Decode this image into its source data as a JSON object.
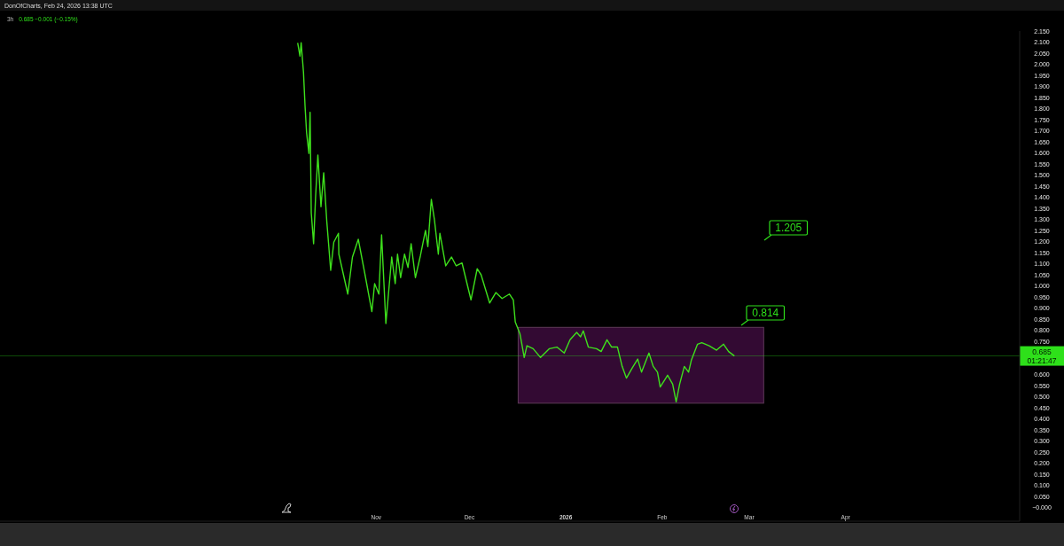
{
  "chart_data": {
    "type": "line",
    "title": "3h",
    "subtitle": "0.685 −0.001 (−0.15%)",
    "annotations": [
      "DonOfCharts, Feb 24, 2026 13:38 UTC",
      "1.205",
      "0.814"
    ],
    "xlim": [
      "2025-07-03",
      "2026-05-27"
    ],
    "xticks": [
      {
        "value": "2025-11-01",
        "label": "Nov"
      },
      {
        "value": "2025-12-01",
        "label": "Dec"
      },
      {
        "value": "2026-01-01",
        "label": "2026"
      },
      {
        "value": "2026-02-01",
        "label": "Feb"
      },
      {
        "value": "2026-03-01",
        "label": "Mar"
      },
      {
        "value": "2026-04-01",
        "label": "Apr"
      }
    ],
    "ylim": [
      -0.06,
      2.15
    ],
    "yticks": [
      {
        "value": 0,
        "label": "−0.000"
      },
      {
        "value": 0.05,
        "label": "0.050"
      },
      {
        "value": 0.1,
        "label": "0.100"
      },
      {
        "value": 0.15,
        "label": "0.150"
      },
      {
        "value": 0.2,
        "label": "0.200"
      },
      {
        "value": 0.25,
        "label": "0.250"
      },
      {
        "value": 0.3,
        "label": "0.300"
      },
      {
        "value": 0.35,
        "label": "0.350"
      },
      {
        "value": 0.4,
        "label": "0.400"
      },
      {
        "value": 0.45,
        "label": "0.450"
      },
      {
        "value": 0.5,
        "label": "0.500"
      },
      {
        "value": 0.55,
        "label": "0.550"
      },
      {
        "value": 0.6,
        "label": "0.600"
      },
      {
        "value": 0.75,
        "label": "0.750"
      },
      {
        "value": 0.8,
        "label": "0.800"
      },
      {
        "value": 0.85,
        "label": "0.850"
      },
      {
        "value": 0.9,
        "label": "0.900"
      },
      {
        "value": 0.95,
        "label": "0.950"
      },
      {
        "value": 1,
        "label": "1.000"
      },
      {
        "value": 1.05,
        "label": "1.050"
      },
      {
        "value": 1.1,
        "label": "1.100"
      },
      {
        "value": 1.15,
        "label": "1.150"
      },
      {
        "value": 1.2,
        "label": "1.200"
      },
      {
        "value": 1.25,
        "label": "1.250"
      },
      {
        "value": 1.3,
        "label": "1.300"
      },
      {
        "value": 1.35,
        "label": "1.350"
      },
      {
        "value": 1.4,
        "label": "1.400"
      },
      {
        "value": 1.45,
        "label": "1.450"
      },
      {
        "value": 1.5,
        "label": "1.500"
      },
      {
        "value": 1.55,
        "label": "1.550"
      },
      {
        "value": 1.6,
        "label": "1.600"
      },
      {
        "value": 1.65,
        "label": "1.650"
      },
      {
        "value": 1.7,
        "label": "1.700"
      },
      {
        "value": 1.75,
        "label": "1.750"
      },
      {
        "value": 1.8,
        "label": "1.800"
      },
      {
        "value": 1.85,
        "label": "1.850"
      },
      {
        "value": 1.9,
        "label": "1.900"
      },
      {
        "value": 1.95,
        "label": "1.950"
      },
      {
        "value": 2,
        "label": "2.000"
      },
      {
        "value": 2.05,
        "label": "2.050"
      },
      {
        "value": 2.1,
        "label": "2.100"
      },
      {
        "value": 2.15,
        "label": "2.150"
      }
    ],
    "ref_lines": [
      {
        "axis": "y",
        "value": 0.685,
        "label": "0.685 01:21:47",
        "color": "#2ee01a"
      }
    ],
    "bands": [
      {
        "axis": "y",
        "from": 0.472,
        "to": 0.814,
        "color": "#330a33"
      }
    ],
    "series": [
      {
        "color": "#3ee01c",
        "x": [
          "2025-10-06T18:00",
          "2025-10-07T12:00",
          "2025-10-07T21:00",
          "2025-10-08T15:00",
          "2025-10-09T03:00",
          "2025-10-09T15:00",
          "2025-10-10T09:00",
          "2025-10-10T18:00",
          "2025-10-11T03:00",
          "2025-10-11T21:00",
          "2025-10-12T12:00",
          "2025-10-13T06:00",
          "2025-10-14T06:00",
          "2025-10-15T03:00",
          "2025-10-16T03:00",
          "2025-10-17T09:00",
          "2025-10-18T09:00",
          "2025-10-19T21:00",
          "2025-10-20T00:00",
          "2025-10-22T21:00",
          "2025-10-24T09:00",
          "2025-10-26T06:00",
          "2025-10-28T06:00",
          "2025-10-30T15:00",
          "2025-10-31T12:00",
          "2025-11-01T21:00",
          "2025-11-02T18:00",
          "2025-11-04T03:00",
          "2025-11-06T00:00",
          "2025-11-07T03:00",
          "2025-11-07T21:00",
          "2025-11-08T21:00",
          "2025-11-10T03:00",
          "2025-11-11T06:00",
          "2025-11-12T06:00",
          "2025-11-13T15:00",
          "2025-11-15T06:00",
          "2025-11-16T21:00",
          "2025-11-17T15:00",
          "2025-11-18T18:00",
          "2025-11-19T18:00",
          "2025-11-21T00:00",
          "2025-11-21T12:00",
          "2025-11-23T09:00",
          "2025-11-25T06:00",
          "2025-11-26T18:00",
          "2025-11-28T15:00",
          "2025-12-01T12:00",
          "2025-12-03T12:00",
          "2025-12-04T18:00",
          "2025-12-07T12:00",
          "2025-12-09T12:00",
          "2025-12-11T12:00",
          "2025-12-13T21:00",
          "2025-12-15T03:00",
          "2025-12-15T18:00",
          "2025-12-17T06:00",
          "2025-12-17T21:00",
          "2025-12-18T15:00",
          "2025-12-19T12:00",
          "2025-12-21T12:00",
          "2025-12-23T21:00",
          "2025-12-26T18:00",
          "2025-12-29T03:00",
          "2025-12-31T12:00",
          "2026-01-02T09:00",
          "2026-01-04T12:00",
          "2026-01-05T18:00",
          "2026-01-06T15:00",
          "2026-01-08T06:00",
          "2026-01-10T21:00",
          "2026-01-12T09:00",
          "2026-01-14T06:00",
          "2026-01-15T18:00",
          "2026-01-17T15:00",
          "2026-01-19T03:00",
          "2026-01-20T12:00",
          "2026-01-22T09:00",
          "2026-01-24T03:00",
          "2026-01-25T09:00",
          "2026-01-27T18:00",
          "2026-01-29T03:00",
          "2026-01-30T12:00",
          "2026-01-31T09:00",
          "2026-02-02T18:00",
          "2026-02-04T09:00",
          "2026-02-05T12:00",
          "2026-02-06T15:00",
          "2026-02-08T03:00",
          "2026-02-09T12:00",
          "2026-02-10T09:00",
          "2026-02-12T09:00",
          "2026-02-13T18:00",
          "2026-02-16T03:00",
          "2026-02-18T12:00",
          "2026-02-20T18:00",
          "2026-02-22T09:00",
          "2026-02-24T06:00"
        ],
        "values": [
          2.097,
          2.037,
          2.097,
          1.964,
          1.811,
          1.691,
          1.598,
          1.784,
          1.331,
          1.191,
          1.398,
          1.591,
          1.358,
          1.511,
          1.291,
          1.071,
          1.198,
          1.238,
          1.144,
          0.964,
          1.131,
          1.211,
          1.064,
          0.885,
          1.011,
          0.964,
          1.231,
          0.831,
          1.131,
          1.011,
          1.144,
          1.038,
          1.144,
          1.084,
          1.191,
          1.038,
          1.138,
          1.251,
          1.178,
          1.391,
          1.298,
          1.144,
          1.238,
          1.091,
          1.131,
          1.091,
          1.104,
          0.938,
          1.078,
          1.051,
          0.924,
          0.971,
          0.944,
          0.964,
          0.938,
          0.838,
          0.785,
          0.738,
          0.678,
          0.731,
          0.718,
          0.678,
          0.718,
          0.725,
          0.698,
          0.758,
          0.791,
          0.771,
          0.798,
          0.725,
          0.718,
          0.705,
          0.758,
          0.725,
          0.725,
          0.638,
          0.585,
          0.631,
          0.671,
          0.612,
          0.698,
          0.638,
          0.612,
          0.545,
          0.598,
          0.558,
          0.478,
          0.558,
          0.638,
          0.612,
          0.665,
          0.738,
          0.745,
          0.731,
          0.711,
          0.738,
          0.705,
          0.685
        ]
      }
    ]
  }
}
